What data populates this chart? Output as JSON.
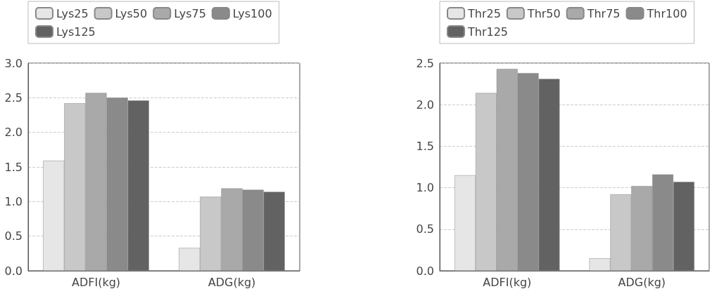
{
  "chart_data": [
    {
      "type": "bar",
      "categories": [
        "ADFI(kg)",
        "ADG(kg)"
      ],
      "ylim": [
        0,
        3.0
      ],
      "yticks": [
        {
          "value": 0,
          "label": "0.0"
        },
        0.5,
        {
          "value": 1,
          "label": "1.0"
        },
        1.5,
        {
          "value": 2,
          "label": "2.0"
        },
        2.5,
        {
          "value": 3,
          "label": "3.0"
        }
      ],
      "grid": "y",
      "legend": "top",
      "series": [
        {
          "name": "Lys25",
          "color": "#e6e6e6",
          "values": [
            1.59,
            0.33
          ]
        },
        {
          "name": "Lys50",
          "color": "#c8c8c8",
          "values": [
            2.42,
            1.07
          ]
        },
        {
          "name": "Lys75",
          "color": "#a9a9a9",
          "values": [
            2.57,
            1.19
          ]
        },
        {
          "name": "Lys100",
          "color": "#8a8a8a",
          "values": [
            2.5,
            1.17
          ]
        },
        {
          "name": "Lys125",
          "color": "#626262",
          "values": [
            2.46,
            1.14
          ]
        }
      ]
    },
    {
      "type": "bar",
      "categories": [
        "ADFI(kg)",
        "ADG(kg)"
      ],
      "ylim": [
        0,
        2.5
      ],
      "yticks": [
        {
          "value": 0,
          "label": "0.0"
        },
        0.5,
        {
          "value": 1,
          "label": "1.0"
        },
        1.5,
        {
          "value": 2,
          "label": "2.0"
        },
        2.5
      ],
      "grid": "y",
      "legend": "top",
      "series": [
        {
          "name": "Thr25",
          "color": "#e6e6e6",
          "values": [
            1.15,
            0.15
          ]
        },
        {
          "name": "Thr50",
          "color": "#c8c8c8",
          "values": [
            2.14,
            0.92
          ]
        },
        {
          "name": "Thr75",
          "color": "#a9a9a9",
          "values": [
            2.43,
            1.02
          ]
        },
        {
          "name": "Thr100",
          "color": "#8a8a8a",
          "values": [
            2.38,
            1.16
          ]
        },
        {
          "name": "Thr125",
          "color": "#626262",
          "values": [
            2.31,
            1.07
          ]
        }
      ]
    }
  ]
}
